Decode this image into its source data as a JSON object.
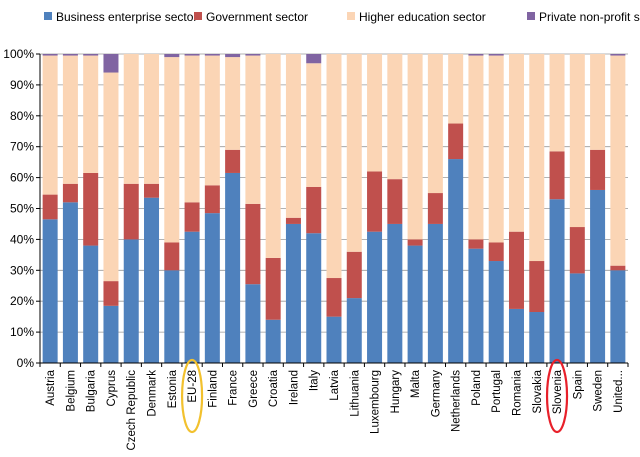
{
  "chart_data": {
    "type": "bar",
    "stacked": true,
    "title": "",
    "xlabel": "",
    "ylabel": "",
    "ylim": [
      0,
      100
    ],
    "y_tick_labels": [
      "0%",
      "10%",
      "20%",
      "30%",
      "40%",
      "50%",
      "60%",
      "70%",
      "80%",
      "90%",
      "100%"
    ],
    "grid": true,
    "legend_position": "top",
    "categories": [
      "Austria",
      "Belgium",
      "Bulgaria",
      "Cyprus",
      "Czech Republic",
      "Denmark",
      "Estonia",
      "EU-28",
      "Finland",
      "France",
      "Greece",
      "Croatia",
      "Ireland",
      "Italy",
      "Latvia",
      "Lithuania",
      "Luxembourg",
      "Hungary",
      "Malta",
      "Germany",
      "Netherlands",
      "Poland",
      "Portugal",
      "Romania",
      "Slovakia",
      "Slovenia",
      "Spain",
      "Sweden",
      "United..."
    ],
    "series": [
      {
        "name": "Business enterprise sector",
        "color": "#4F81BD",
        "values": [
          46.5,
          52,
          38,
          18.5,
          40,
          53.5,
          30,
          42.5,
          48.5,
          61.5,
          25.5,
          14,
          45,
          42,
          15,
          21,
          42.5,
          45,
          38,
          45,
          66,
          37,
          33,
          17.5,
          16.5,
          53,
          29,
          56,
          30
        ]
      },
      {
        "name": "Government sector",
        "color": "#C0504D",
        "values": [
          8,
          6,
          23.5,
          8,
          18,
          4.5,
          9,
          9.5,
          9,
          7.5,
          26,
          20,
          2,
          15,
          12.5,
          15,
          19.5,
          14.5,
          2,
          10,
          11.5,
          3,
          6,
          25,
          16.5,
          15.5,
          15,
          13,
          1.5
        ]
      },
      {
        "name": "Higher education sector",
        "color": "#FBD5B5",
        "values": [
          45,
          41.5,
          38,
          67.5,
          42,
          42,
          60,
          47.5,
          42,
          30,
          48,
          66,
          53,
          40,
          72.5,
          64,
          38,
          40.5,
          60,
          45,
          22.5,
          59.5,
          60.5,
          57.5,
          67,
          31.5,
          56,
          31,
          68
        ]
      },
      {
        "name": "Private non-profit sector",
        "color": "#8064A2",
        "values": [
          0.5,
          0.5,
          0.5,
          6,
          0,
          0,
          1,
          0.5,
          0.5,
          1,
          0.5,
          0,
          0,
          3,
          0,
          0,
          0,
          0,
          0,
          0,
          0,
          0.5,
          0.5,
          0,
          0,
          0,
          0,
          0,
          0.5
        ]
      }
    ],
    "highlights": [
      {
        "category": "EU-28",
        "color": "#F2C12E"
      },
      {
        "category": "Slovenia",
        "color": "#E8202A"
      }
    ]
  }
}
